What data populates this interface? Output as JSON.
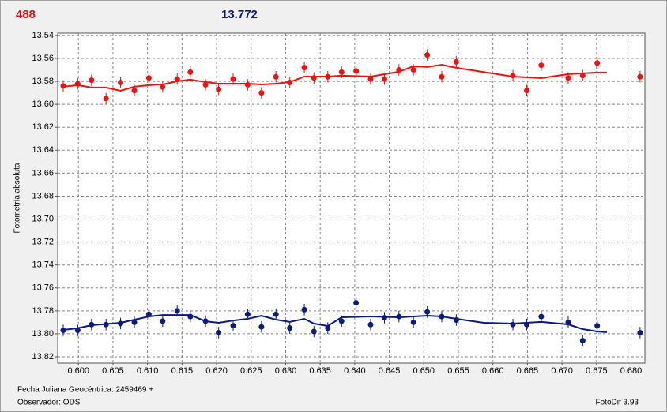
{
  "chart_data": {
    "type": "scatter",
    "header_left": "488",
    "header_right": "13.772",
    "y_label": "Fotometría absoluta",
    "footer_date": "Fecha Juliana Geocéntrica: 2459469 +",
    "footer_observer": "Observador: ODS",
    "footer_software": "FotoDif 3.93",
    "xlim": [
      0.597,
      0.682
    ],
    "ylim": [
      13.538,
      13.8255
    ],
    "y_inverted": true,
    "grid": true,
    "xticks": [
      {
        "value": 0.6,
        "label": "0.600"
      },
      {
        "value": 0.605,
        "label": "0.605"
      },
      {
        "value": 0.61,
        "label": "0.610"
      },
      {
        "value": 0.615,
        "label": "0.615"
      },
      {
        "value": 0.62,
        "label": "0.620"
      },
      {
        "value": 0.625,
        "label": "0.625"
      },
      {
        "value": 0.63,
        "label": "0.630"
      },
      {
        "value": 0.635,
        "label": "0.635"
      },
      {
        "value": 0.64,
        "label": "0.640"
      },
      {
        "value": 0.645,
        "label": "0.645"
      },
      {
        "value": 0.65,
        "label": "0.650"
      },
      {
        "value": 0.655,
        "label": "0.655"
      },
      {
        "value": 0.66,
        "label": "0.660"
      },
      {
        "value": 0.665,
        "label": "0.665"
      },
      {
        "value": 0.67,
        "label": "0.670"
      },
      {
        "value": 0.675,
        "label": "0.675"
      },
      {
        "value": 0.68,
        "label": "0.680"
      }
    ],
    "yticks": [
      13.54,
      13.56,
      13.58,
      {
        "value": 13.6,
        "label": "13.60"
      },
      13.62,
      13.64,
      13.66,
      13.68,
      {
        "value": 13.7,
        "label": "13.70"
      },
      13.72,
      13.74,
      13.76,
      13.78,
      {
        "value": 13.8,
        "label": "13.80"
      },
      13.82
    ],
    "series": [
      {
        "color": "#ee1111",
        "error": 0.005,
        "x": [
          0.5978,
          0.5999,
          0.6019,
          0.604,
          0.6061,
          0.6081,
          0.6102,
          0.6122,
          0.6143,
          0.6162,
          0.6184,
          0.6203,
          0.6224,
          0.6245,
          0.6265,
          0.6286,
          0.6306,
          0.6327,
          0.6341,
          0.6361,
          0.6381,
          0.6402,
          0.6423,
          0.6443,
          0.6464,
          0.6485,
          0.6505,
          0.6526,
          0.6547,
          0.6629,
          0.6649,
          0.667,
          0.6709,
          0.673,
          0.6751,
          0.6813
        ],
        "values": [
          13.584,
          13.582,
          13.579,
          13.595,
          13.581,
          13.588,
          13.577,
          13.585,
          13.578,
          13.572,
          13.583,
          13.587,
          13.578,
          13.583,
          13.59,
          13.576,
          13.581,
          13.568,
          13.577,
          13.576,
          13.572,
          13.571,
          13.578,
          13.578,
          13.57,
          13.57,
          13.557,
          13.576,
          13.563,
          13.575,
          13.588,
          13.566,
          13.577,
          13.575,
          13.564,
          13.576
        ]
      },
      {
        "color": "#0a1a80",
        "error": 0.005,
        "x": [
          0.5978,
          0.5999,
          0.6019,
          0.604,
          0.6061,
          0.6081,
          0.6102,
          0.6122,
          0.6143,
          0.6162,
          0.6184,
          0.6203,
          0.6224,
          0.6245,
          0.6265,
          0.6286,
          0.6306,
          0.6327,
          0.6341,
          0.6361,
          0.6381,
          0.6402,
          0.6423,
          0.6443,
          0.6464,
          0.6485,
          0.6505,
          0.6526,
          0.6547,
          0.6629,
          0.6649,
          0.667,
          0.6709,
          0.673,
          0.6751,
          0.6813
        ],
        "values": [
          13.797,
          13.797,
          13.792,
          13.792,
          13.791,
          13.79,
          13.783,
          13.789,
          13.78,
          13.785,
          13.789,
          13.799,
          13.793,
          13.783,
          13.794,
          13.783,
          13.795,
          13.779,
          13.798,
          13.795,
          13.789,
          13.773,
          13.792,
          13.786,
          13.785,
          13.79,
          13.781,
          13.785,
          13.788,
          13.792,
          13.792,
          13.785,
          13.79,
          13.806,
          13.793,
          13.799
        ]
      }
    ],
    "fits": [
      {
        "color": "#ee1111",
        "x": [
          0.5978,
          0.5999,
          0.6019,
          0.604,
          0.6061,
          0.6081,
          0.6102,
          0.6122,
          0.6143,
          0.6162,
          0.6184,
          0.6203,
          0.6224,
          0.6245,
          0.6265,
          0.6286,
          0.6306,
          0.6327,
          0.6361,
          0.6381,
          0.6423,
          0.6464,
          0.6485,
          0.6505,
          0.6526,
          0.6547,
          0.6629,
          0.667,
          0.6709,
          0.6751,
          0.6765
        ],
        "values": [
          13.5847,
          13.5833,
          13.5854,
          13.5854,
          13.5882,
          13.5847,
          13.5833,
          13.5827,
          13.5799,
          13.5785,
          13.5806,
          13.582,
          13.582,
          13.582,
          13.5827,
          13.582,
          13.5806,
          13.5758,
          13.5758,
          13.5751,
          13.5758,
          13.5716,
          13.5668,
          13.5675,
          13.5655,
          13.5682,
          13.5758,
          13.5772,
          13.5737,
          13.5723,
          13.5723
        ]
      },
      {
        "color": "#0a1a80",
        "x": [
          0.5978,
          0.5999,
          0.6019,
          0.6061,
          0.6102,
          0.6122,
          0.6162,
          0.6184,
          0.6203,
          0.6224,
          0.6245,
          0.6265,
          0.6286,
          0.6306,
          0.6327,
          0.6341,
          0.6361,
          0.6381,
          0.6423,
          0.6464,
          0.6505,
          0.6526,
          0.6547,
          0.6587,
          0.6629,
          0.667,
          0.6709,
          0.673,
          0.6751,
          0.6765
        ],
        "values": [
          13.7966,
          13.7952,
          13.7925,
          13.7904,
          13.7849,
          13.7836,
          13.7836,
          13.7891,
          13.7904,
          13.7884,
          13.787,
          13.7842,
          13.7877,
          13.7897,
          13.787,
          13.7911,
          13.7932,
          13.7856,
          13.7849,
          13.7856,
          13.7842,
          13.7849,
          13.787,
          13.7904,
          13.7911,
          13.7897,
          13.7918,
          13.7959,
          13.798,
          13.7987
        ]
      }
    ]
  }
}
